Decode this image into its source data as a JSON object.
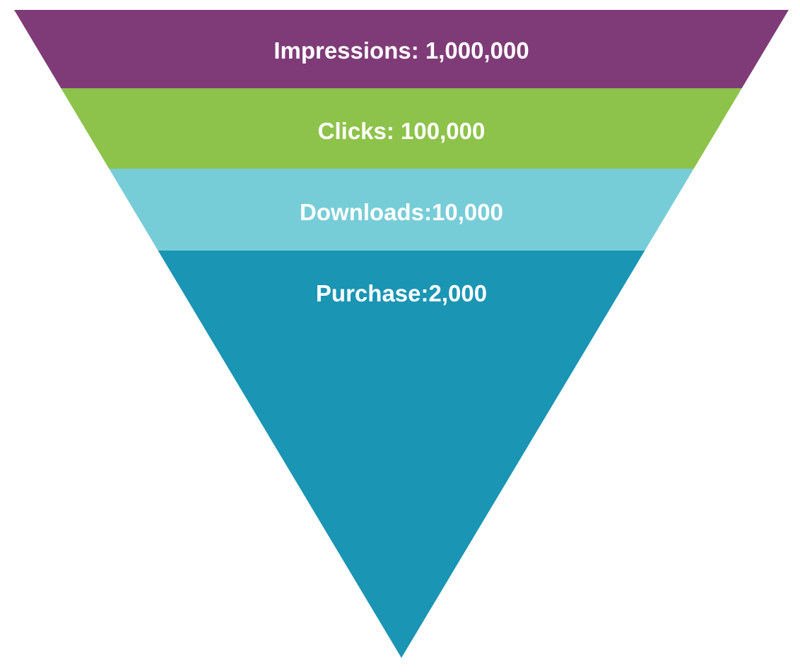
{
  "funnel": {
    "stages": [
      {
        "label": "Impressions: 1,000,000",
        "color": "#7f3b77"
      },
      {
        "label": "Clicks: 100,000",
        "color": "#8dc34a"
      },
      {
        "label": "Downloads:10,000",
        "color": "#77cdd7"
      },
      {
        "label": "Purchase:2,000",
        "color": "#1a95b4"
      }
    ]
  }
}
